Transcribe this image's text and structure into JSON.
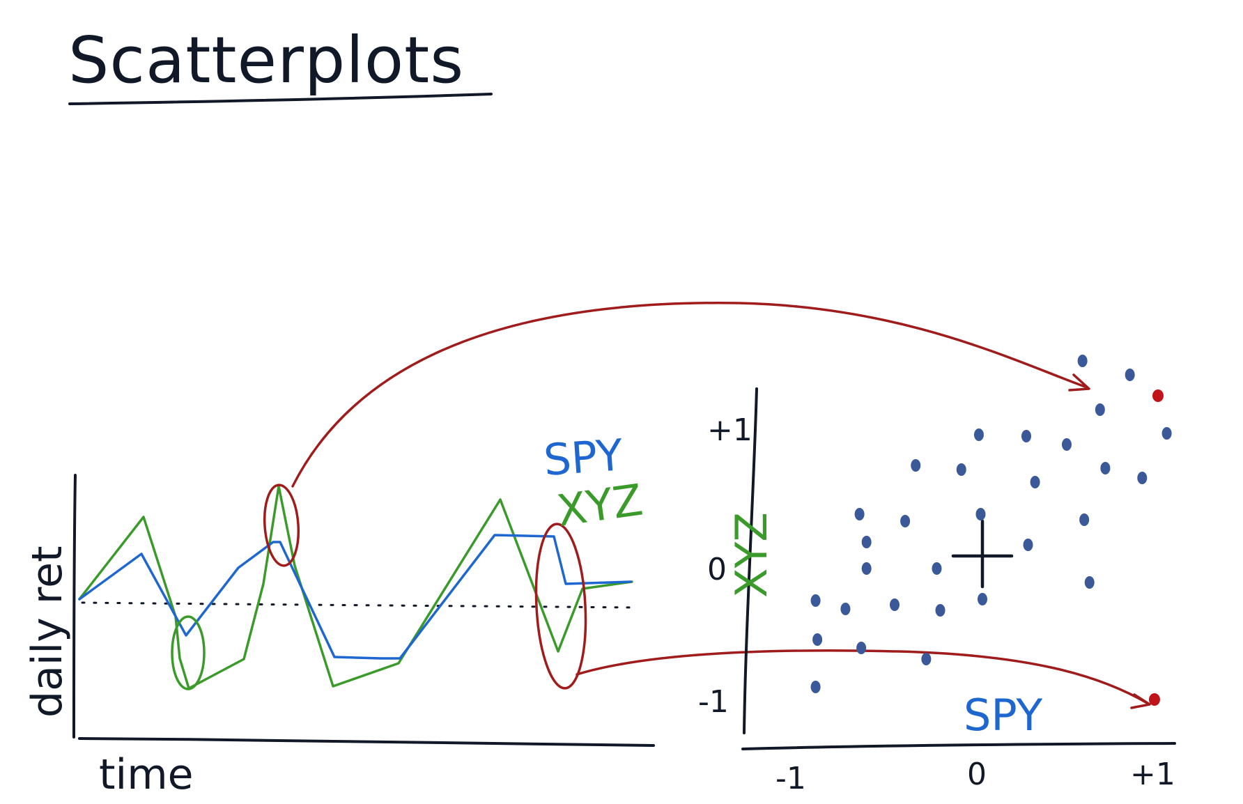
{
  "title": "Scatterplots",
  "colors": {
    "ink": "#111827",
    "spy": "#1e66d0",
    "xyz": "#3a9a2a",
    "highlight": "#a01c1c",
    "dot": "#3b5998",
    "dot_highlight": "#c0141a"
  },
  "time_series": {
    "ylabel": "daily ret",
    "xlabel": "time",
    "legend": {
      "spy": "SPY",
      "xyz": "XYZ"
    }
  },
  "scatter": {
    "xlabel": "SPY",
    "ylabel": "XYZ",
    "x_ticks": [
      "-1",
      "0",
      "+1"
    ],
    "y_ticks": [
      "+1",
      "0",
      "-1"
    ]
  },
  "chart_data": {
    "type": "scatter",
    "xlabel": "SPY",
    "ylabel": "XYZ",
    "xlim": [
      -1.3,
      1.0
    ],
    "ylim": [
      -1.15,
      1.4
    ],
    "x_ticks": [
      "-1",
      "0",
      "+1"
    ],
    "y_ticks": [
      "+1",
      "0",
      "-1"
    ],
    "points": [
      {
        "x": 0.57,
        "y": 1.4
      },
      {
        "x": 0.84,
        "y": 1.3
      },
      {
        "x": 0.67,
        "y": 1.05
      },
      {
        "x": 1.05,
        "y": 0.88
      },
      {
        "x": -0.02,
        "y": 0.87
      },
      {
        "x": 0.25,
        "y": 0.86
      },
      {
        "x": 0.48,
        "y": 0.8
      },
      {
        "x": -0.38,
        "y": 0.65
      },
      {
        "x": -0.12,
        "y": 0.62
      },
      {
        "x": 0.3,
        "y": 0.53
      },
      {
        "x": 0.7,
        "y": 0.63
      },
      {
        "x": 0.91,
        "y": 0.56
      },
      {
        "x": -0.7,
        "y": 0.3
      },
      {
        "x": -0.44,
        "y": 0.25
      },
      {
        "x": -0.01,
        "y": 0.3
      },
      {
        "x": 0.58,
        "y": 0.26
      },
      {
        "x": -0.66,
        "y": 0.1
      },
      {
        "x": 0.26,
        "y": 0.08
      },
      {
        "x": -0.66,
        "y": -0.09
      },
      {
        "x": -0.26,
        "y": -0.09
      },
      {
        "x": 0.61,
        "y": -0.19
      },
      {
        "x": -0.95,
        "y": -0.32
      },
      {
        "x": -0.78,
        "y": -0.38
      },
      {
        "x": -0.5,
        "y": -0.35
      },
      {
        "x": -0.24,
        "y": -0.39
      },
      {
        "x": 0.0,
        "y": -0.31
      },
      {
        "x": -0.94,
        "y": -0.6
      },
      {
        "x": -0.69,
        "y": -0.66
      },
      {
        "x": -0.32,
        "y": -0.74
      },
      {
        "x": -0.95,
        "y": -0.94
      }
    ],
    "highlighted_points": [
      {
        "x": 1.0,
        "y": 1.15
      },
      {
        "x": 0.98,
        "y": -1.03
      }
    ]
  }
}
